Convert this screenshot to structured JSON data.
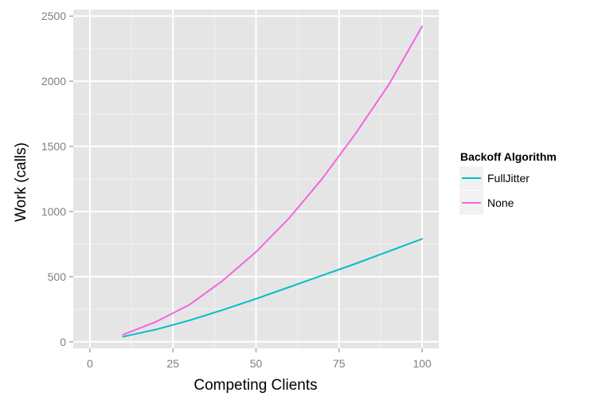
{
  "chart_data": {
    "type": "line",
    "title": "",
    "xlabel": "Competing Clients",
    "ylabel": "Work (calls)",
    "xlim": [
      -5,
      105
    ],
    "ylim": [
      -50,
      2550
    ],
    "x_ticks": [
      0,
      25,
      50,
      75,
      100
    ],
    "y_ticks": [
      0,
      500,
      1000,
      1500,
      2000,
      2500
    ],
    "grid": true,
    "legend": {
      "title": "Backoff Algorithm",
      "placement": "right"
    },
    "series": [
      {
        "name": "FullJitter",
        "color": "#00bfc4",
        "x": [
          10,
          20,
          30,
          40,
          50,
          60,
          70,
          80,
          90,
          100
        ],
        "y": [
          40,
          95,
          165,
          245,
          330,
          420,
          510,
          600,
          695,
          790
        ]
      },
      {
        "name": "None",
        "color": "#f564e3",
        "x": [
          10,
          20,
          30,
          40,
          50,
          60,
          70,
          80,
          90,
          100
        ],
        "y": [
          55,
          155,
          285,
          470,
          690,
          950,
          1255,
          1600,
          1975,
          2420
        ]
      }
    ]
  }
}
